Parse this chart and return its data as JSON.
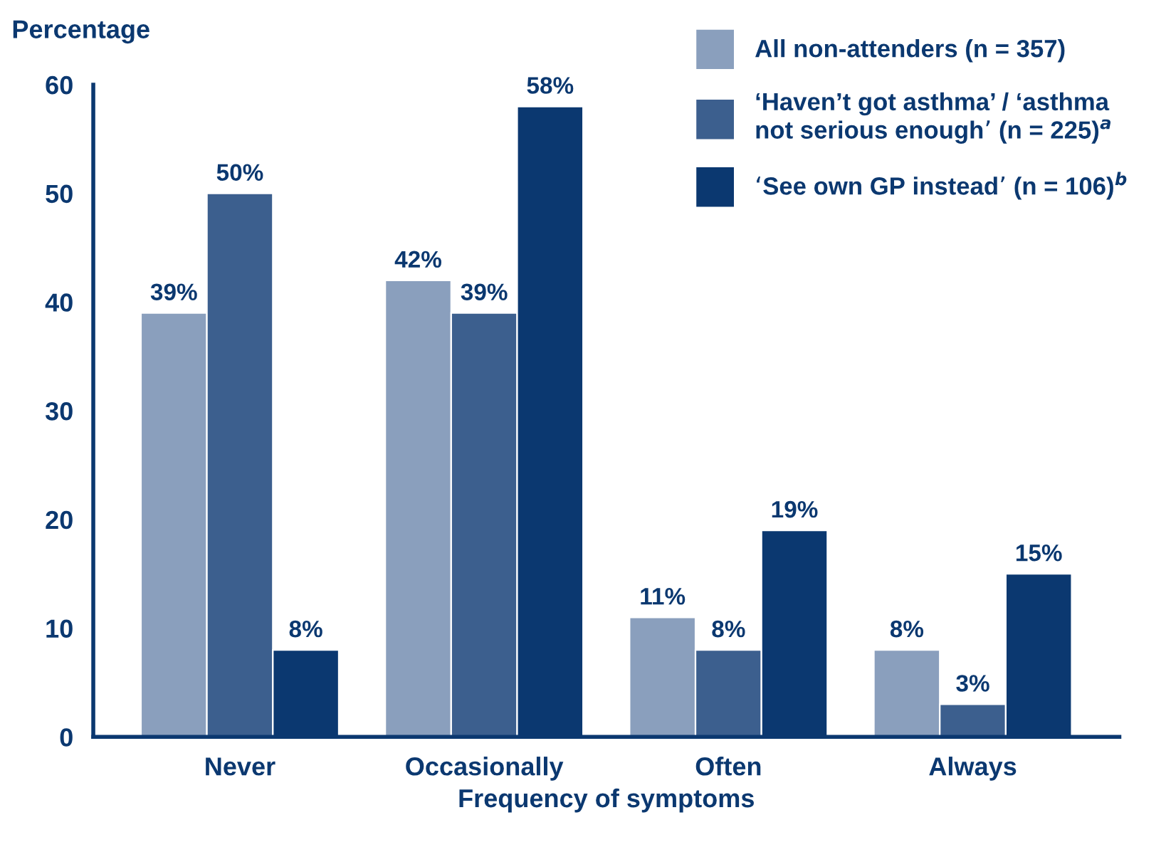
{
  "chart_data": {
    "type": "bar",
    "ylabel": "Percentage",
    "xlabel": "Frequency of symptoms",
    "categories": [
      "Never",
      "Occasionally",
      "Often",
      "Always"
    ],
    "series": [
      {
        "name": "All non-attenders (n = 357)",
        "color": "#8a9fbd",
        "values": [
          39,
          42,
          11,
          8
        ],
        "value_labels": [
          "39%",
          "42%",
          "11%",
          "8%"
        ]
      },
      {
        "name": "‘Haven’t got asthma’ / ‘asthma\nnot serious enough’ (n = 225)$^{a}$",
        "color": "#3c5f8e",
        "values": [
          50,
          39,
          8,
          3
        ],
        "value_labels": [
          "50%",
          "39%",
          "8%",
          "3%"
        ]
      },
      {
        "name": "‘See own GP instead’ (n = 106)$^{b}$",
        "color": "#0b3870",
        "values": [
          8,
          58,
          19,
          15
        ],
        "value_labels": [
          "8%",
          "58%",
          "19%",
          "15%"
        ]
      }
    ],
    "ylim": [
      0,
      60
    ],
    "yticks": [
      0,
      10,
      20,
      30,
      40,
      50,
      60
    ],
    "grid": false,
    "legend": "top right"
  }
}
